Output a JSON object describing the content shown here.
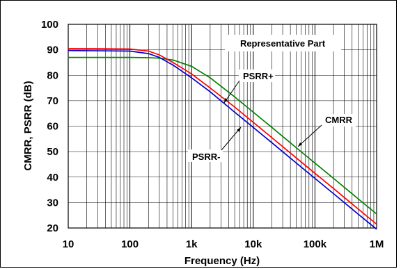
{
  "chart_data": {
    "type": "line",
    "title": "",
    "xlabel": "Frequency (Hz)",
    "ylabel": "CMRR, PSRR (dB)",
    "xscale": "log",
    "xlim": [
      10,
      1000000
    ],
    "ylim": [
      20,
      100
    ],
    "grid": true,
    "x_tick_labels": [
      "10",
      "100",
      "1k",
      "10k",
      "100k",
      "1M"
    ],
    "y_ticks": [
      20,
      30,
      40,
      50,
      60,
      70,
      80,
      90,
      100
    ],
    "colors": {
      "CMRR": "#008000",
      "PSRR+": "#ff0000",
      "PSRR-": "#0000cc"
    },
    "series": [
      {
        "name": "CMRR",
        "x": [
          10,
          100,
          200,
          300,
          500,
          1000,
          2000,
          5000,
          10000,
          20000,
          50000,
          100000,
          200000,
          500000,
          1000000
        ],
        "y": [
          87,
          87,
          86.9,
          86.7,
          86,
          83.5,
          79,
          71.5,
          65.5,
          59.5,
          51.5,
          45.5,
          39.5,
          31.5,
          25.5
        ]
      },
      {
        "name": "PSRR+",
        "x": [
          10,
          100,
          200,
          300,
          500,
          1000,
          2000,
          5000,
          10000,
          20000,
          50000,
          100000,
          200000,
          500000,
          1000000
        ],
        "y": [
          90.5,
          90.3,
          89.5,
          88,
          85,
          80.5,
          75,
          67.5,
          61.5,
          55.5,
          47.5,
          41.5,
          35.5,
          27.5,
          21.5
        ]
      },
      {
        "name": "PSRR-",
        "x": [
          10,
          100,
          200,
          300,
          500,
          1000,
          2000,
          5000,
          10000,
          20000,
          50000,
          100000,
          200000,
          500000,
          1000000
        ],
        "y": [
          89.7,
          89.5,
          88.5,
          87,
          84,
          79,
          73.5,
          65.5,
          59.5,
          53.5,
          45.5,
          39.5,
          33.5,
          25.5,
          19.5
        ]
      }
    ],
    "annotations": [
      {
        "text": "Representative Part"
      },
      {
        "text": "PSRR+"
      },
      {
        "text": "CMRR"
      },
      {
        "text": "PSRR-"
      }
    ]
  }
}
